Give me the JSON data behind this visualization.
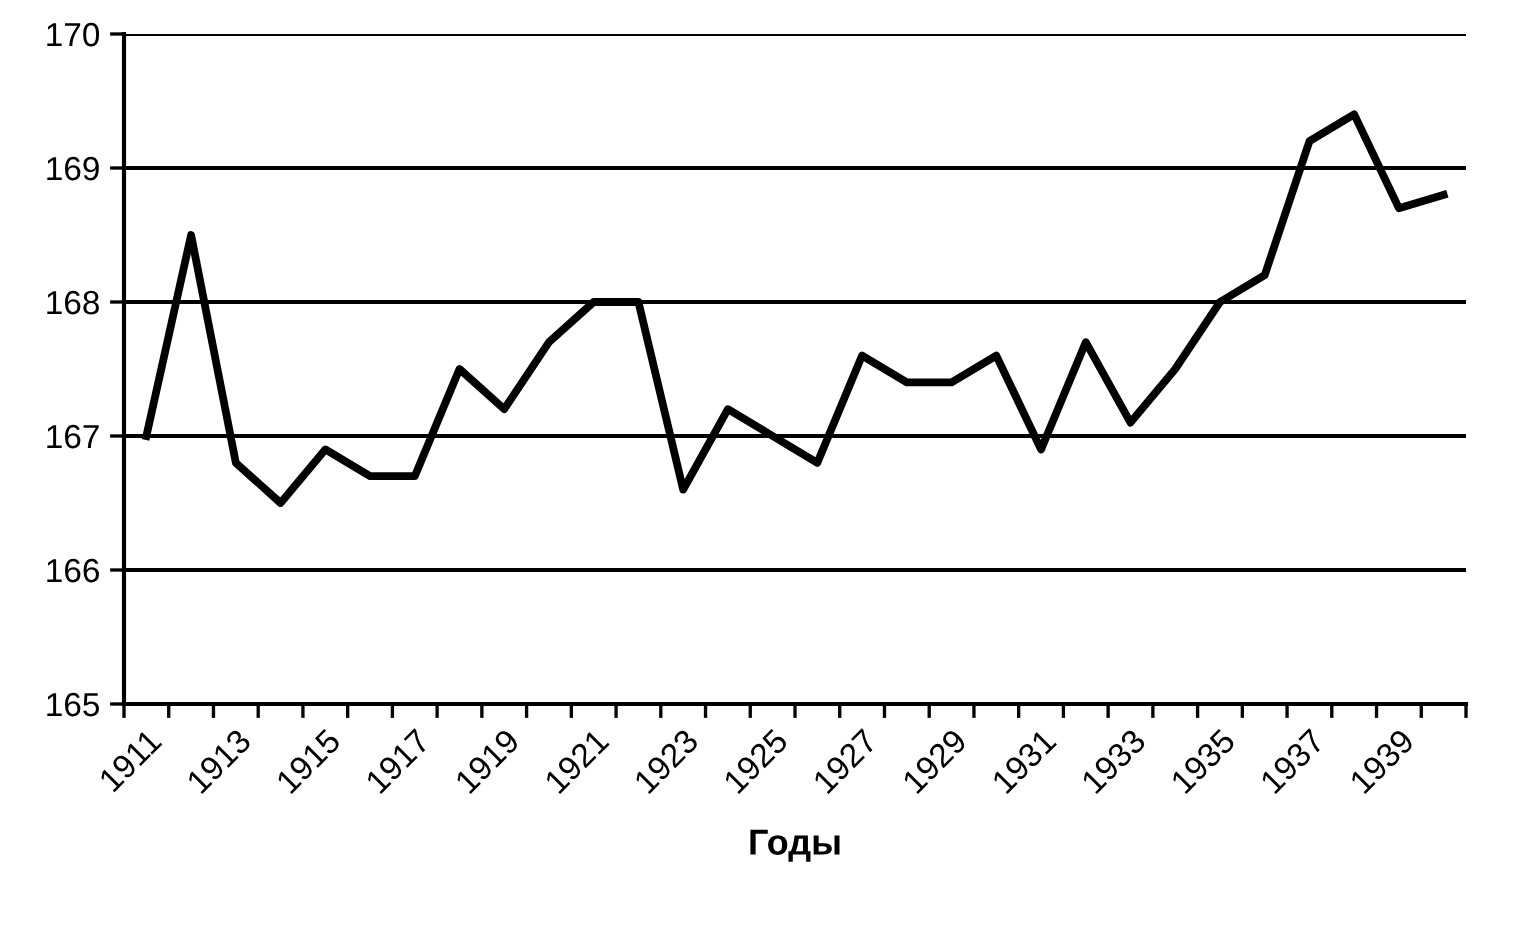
{
  "chart_data": {
    "type": "line",
    "xlabel": "Годы",
    "categories": [
      "1911",
      null,
      "1913",
      null,
      "1915",
      null,
      "1917",
      null,
      "1919",
      null,
      "1921",
      null,
      "1923",
      null,
      "1925",
      null,
      "1927",
      null,
      "1929",
      null,
      "1931",
      null,
      "1933",
      null,
      "1935",
      null,
      "1937",
      null,
      "1939",
      null
    ],
    "series": [
      {
        "color": "#000000",
        "values": [
          167.0,
          168.5,
          166.8,
          166.5,
          166.9,
          166.7,
          166.7,
          167.5,
          167.2,
          167.7,
          168.0,
          168.0,
          166.6,
          167.2,
          167.0,
          166.8,
          167.6,
          167.4,
          167.4,
          167.6,
          166.9,
          167.7,
          167.1,
          167.5,
          168.0,
          168.2,
          169.2,
          169.4,
          168.7,
          168.8
        ]
      }
    ],
    "ylim": [
      165,
      170
    ],
    "yticks": [
      165,
      166,
      167,
      168,
      169,
      170
    ],
    "grid": "y",
    "legend": false,
    "marker": "none",
    "line_style": "solid"
  }
}
